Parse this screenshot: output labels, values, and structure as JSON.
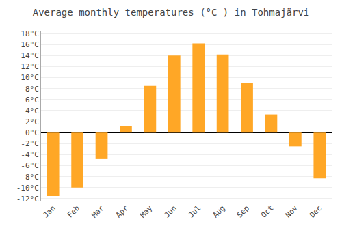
{
  "chart_data": {
    "type": "bar",
    "title": "Average monthly temperatures (°C ) in Tohmajärvi",
    "categories": [
      "Jan",
      "Feb",
      "Mar",
      "Apr",
      "May",
      "Jun",
      "Jul",
      "Aug",
      "Sep",
      "Oct",
      "Nov",
      "Dec"
    ],
    "values": [
      -11.5,
      -10.0,
      -4.8,
      1.2,
      8.5,
      14.0,
      16.2,
      14.2,
      9.0,
      3.3,
      -2.5,
      -8.3
    ],
    "color": "#FFA726",
    "ylim": [
      -12.5,
      18.5
    ],
    "yticks": [
      {
        "value": -12,
        "label": "-12°C"
      },
      {
        "value": -10,
        "label": "-10°C"
      },
      {
        "value": -8,
        "label": "-8°C"
      },
      {
        "value": -6,
        "label": "-6°C"
      },
      {
        "value": -4,
        "label": "-4°C"
      },
      {
        "value": -2,
        "label": "-2°C"
      },
      {
        "value": 0,
        "label": "0°C"
      },
      {
        "value": 2,
        "label": "2°C"
      },
      {
        "value": 4,
        "label": "4°C"
      },
      {
        "value": 6,
        "label": "6°C"
      },
      {
        "value": 8,
        "label": "8°C"
      },
      {
        "value": 10,
        "label": "10°C"
      },
      {
        "value": 12,
        "label": "12°C"
      },
      {
        "value": 14,
        "label": "14°C"
      },
      {
        "value": 16,
        "label": "16°C"
      },
      {
        "value": 18,
        "label": "18°C"
      }
    ],
    "grid": true
  }
}
